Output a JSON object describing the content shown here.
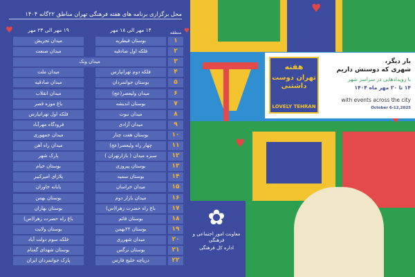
{
  "title": "محل برگزاری برنامه های هفته فرهنگی تهران  مناطق ۲۲گانه ۱۴۰۴",
  "headers": {
    "number": "منطقه",
    "period1": "۱۴ مهر الی ۱۸ مهر",
    "period2": "۱۹ مهر الی ۲۳ مهر"
  },
  "rows": [
    {
      "n": "۱",
      "a": "بوستان قیطریه",
      "b": "میدان تجریش"
    },
    {
      "n": "۲",
      "a": "فلکه اول صادقیه",
      "b": "میدان صنعت"
    },
    {
      "n": "۳",
      "a": "میدان ونک",
      "b": null
    },
    {
      "n": "۴",
      "a": "فلکه دوم تهرانپارس",
      "b": "میدان ملت"
    },
    {
      "n": "۵",
      "a": "بوستان جوانمردان",
      "b": "میدان صادقیه"
    },
    {
      "n": "۶",
      "a": "میدان ولیعصر(عج)",
      "b": "میدان انقلاب"
    },
    {
      "n": "۷",
      "a": "بوستان اندیشه",
      "b": "باغ موزه قصر"
    },
    {
      "n": "۸",
      "a": "میدان نبوت",
      "b": "فلکه اول تهرانپارس"
    },
    {
      "n": "۹",
      "a": "میدان آزادی",
      "b": "فرودگاه مهرآباد"
    },
    {
      "n": "۱۰",
      "a": "بوستان هفت چنار",
      "b": "میدان جمهوری"
    },
    {
      "n": "۱۱",
      "a": "چهار راه ولیعصر(عج)",
      "b": "میدان راه آهن"
    },
    {
      "n": "۱۲",
      "a": "سبزه میدان ( بازارتهران )",
      "b": "پارک شهر"
    },
    {
      "n": "۱۳",
      "a": "بوستان پیروزی",
      "b": "بوستان خیام"
    },
    {
      "n": "۱۴",
      "a": "بوستان سمیه",
      "b": "پلازای امیرکبیر"
    },
    {
      "n": "۱۵",
      "a": "میدان خراسان",
      "b": "پایانه خاوران"
    },
    {
      "n": "۱۶",
      "a": "میدان بازار دوم",
      "b": "بوستان بهمن"
    },
    {
      "n": "۱۷",
      "a": "باغ راه حضرت زهرا(س)",
      "b": "بوستان بهاران"
    },
    {
      "n": "۱۸",
      "a": "بوستان قائم",
      "b": "باغ راه حضرت زهرا(س)"
    },
    {
      "n": "۱۹",
      "a": "بوستان ۲۲بهمن",
      "b": "بوستان ولایت"
    },
    {
      "n": "۲۰",
      "a": "میدان شهرری",
      "b": "فلکه سوم دولت آباد"
    },
    {
      "n": "۲۱",
      "a": "بوستان نرگس",
      "b": "بوستان شهدای گمنام"
    },
    {
      "n": "۲۲",
      "a": "دریاچه خلیج فارس",
      "b": "پارک جوانمردان ایران"
    }
  ],
  "card": {
    "line1": "بار دیگر،",
    "line2": "شهری که دوستش داریم",
    "line3": "با رویدادهایی در سراسر شهر",
    "line4": "۱۴ تا ۲۰ مهر ماه ۱۴۰۴",
    "english": "with events across the city",
    "dates": "October 6-12,2025"
  },
  "logo": {
    "top": "هفته",
    "middle": "تهران دوست داشتنی",
    "english": "LOVELY TEHRAN"
  },
  "seal": {
    "line1": "معاونت امور اجتماعی و فرهنگی",
    "line2": "اداره کل فرهنگی"
  },
  "colors": {
    "background": "#3c4b9e",
    "cell": "#5466b6",
    "number": "#f5b52e",
    "heart": "#e04848",
    "green": "#2e9e4f"
  }
}
